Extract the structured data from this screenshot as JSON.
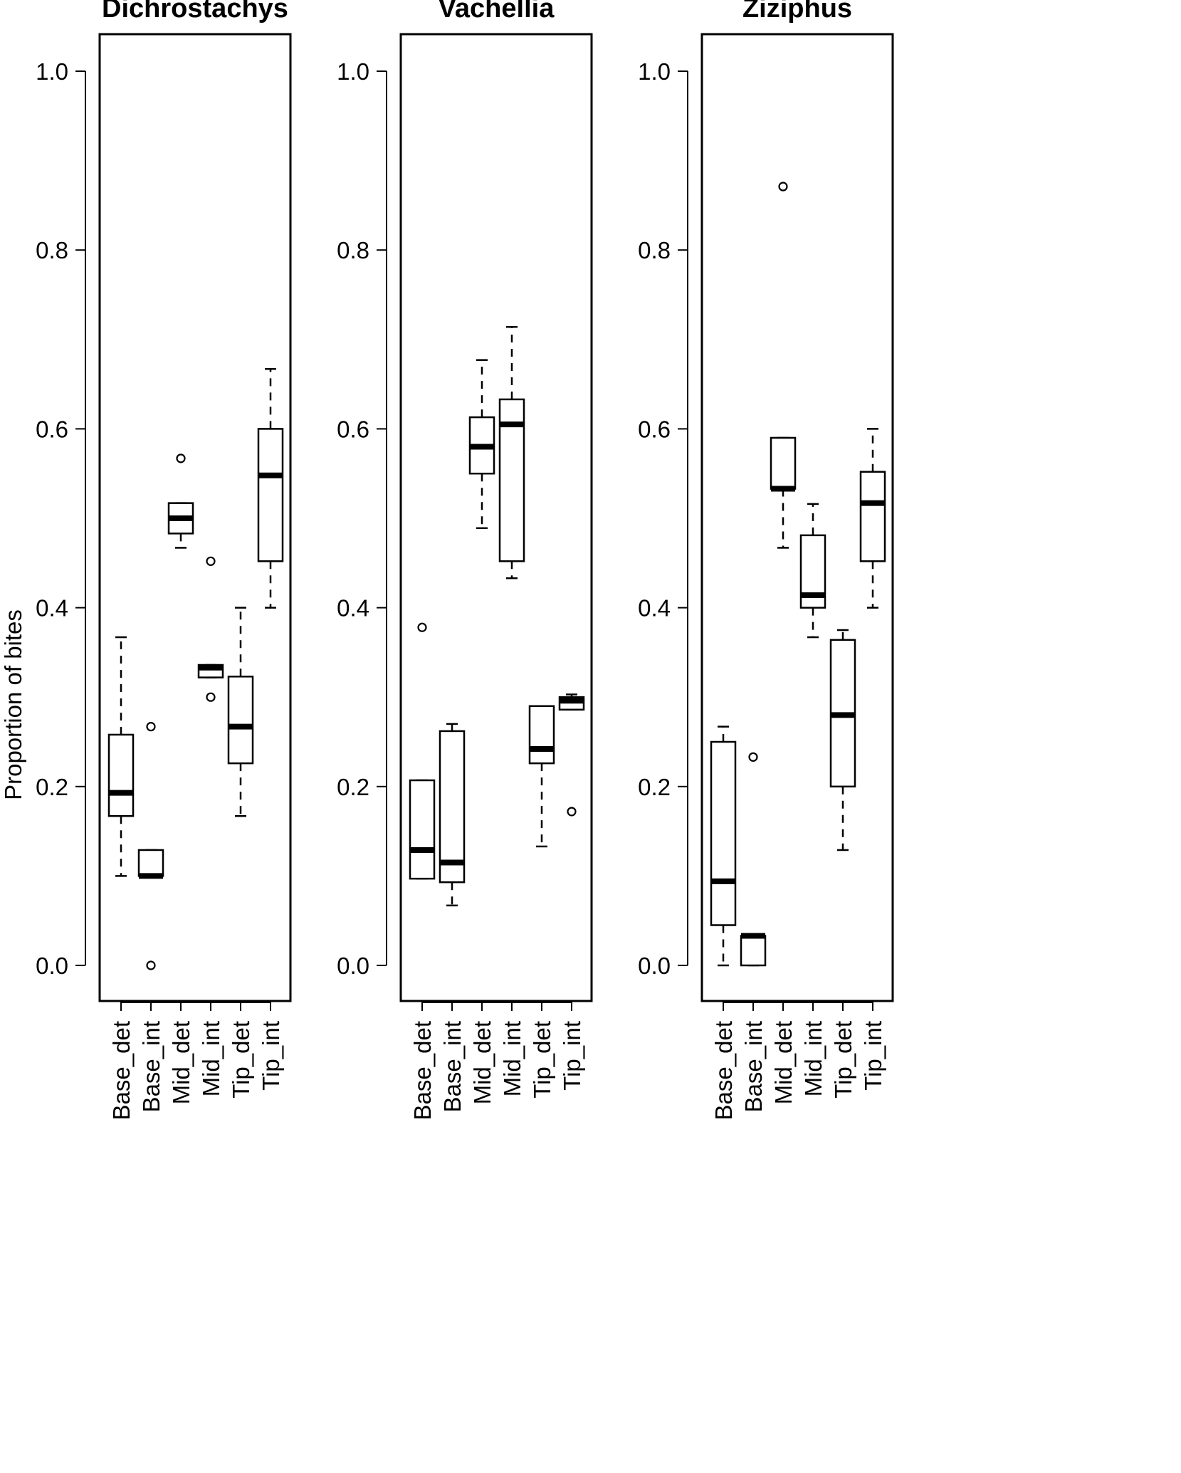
{
  "chart_data": {
    "type": "boxplot",
    "ylabel": "Proportion of bites",
    "ylim": [
      -0.04,
      1.04
    ],
    "yticks": [
      "0.0",
      "0.2",
      "0.4",
      "0.6",
      "0.8",
      "1.0"
    ],
    "categories": [
      "Base_det",
      "Base_int",
      "Mid_det",
      "Mid_int",
      "Tip_det",
      "Tip_int"
    ],
    "panels": [
      {
        "title": "Dichrostachys",
        "boxes": [
          {
            "category": "Base_det",
            "whisker_low": 0.1,
            "q1": 0.167,
            "median": 0.193,
            "q3": 0.258,
            "whisker_high": 0.367,
            "outliers": []
          },
          {
            "category": "Base_int",
            "whisker_low": 0.1,
            "q1": 0.1,
            "median": 0.1,
            "q3": 0.129,
            "whisker_high": 0.129,
            "outliers": [
              0.267,
              0.0
            ]
          },
          {
            "category": "Mid_det",
            "whisker_low": 0.467,
            "q1": 0.483,
            "median": 0.5,
            "q3": 0.517,
            "whisker_high": 0.517,
            "outliers": [
              0.567
            ]
          },
          {
            "category": "Mid_int",
            "whisker_low": 0.322,
            "q1": 0.322,
            "median": 0.333,
            "q3": 0.336,
            "whisker_high": 0.336,
            "outliers": [
              0.452,
              0.3
            ]
          },
          {
            "category": "Tip_det",
            "whisker_low": 0.167,
            "q1": 0.226,
            "median": 0.267,
            "q3": 0.323,
            "whisker_high": 0.4,
            "outliers": []
          },
          {
            "category": "Tip_int",
            "whisker_low": 0.4,
            "q1": 0.452,
            "median": 0.548,
            "q3": 0.6,
            "whisker_high": 0.667,
            "outliers": []
          }
        ]
      },
      {
        "title": "Vachellia",
        "boxes": [
          {
            "category": "Base_det",
            "whisker_low": 0.097,
            "q1": 0.097,
            "median": 0.129,
            "q3": 0.207,
            "whisker_high": 0.207,
            "outliers": [
              0.378
            ]
          },
          {
            "category": "Base_int",
            "whisker_low": 0.067,
            "q1": 0.093,
            "median": 0.115,
            "q3": 0.262,
            "whisker_high": 0.27,
            "outliers": []
          },
          {
            "category": "Mid_det",
            "whisker_low": 0.489,
            "q1": 0.55,
            "median": 0.58,
            "q3": 0.613,
            "whisker_high": 0.677,
            "outliers": []
          },
          {
            "category": "Mid_int",
            "whisker_low": 0.433,
            "q1": 0.452,
            "median": 0.605,
            "q3": 0.633,
            "whisker_high": 0.714,
            "outliers": []
          },
          {
            "category": "Tip_det",
            "whisker_low": 0.133,
            "q1": 0.226,
            "median": 0.242,
            "q3": 0.29,
            "whisker_high": 0.29,
            "outliers": []
          },
          {
            "category": "Tip_int",
            "whisker_low": 0.286,
            "q1": 0.286,
            "median": 0.296,
            "q3": 0.3,
            "whisker_high": 0.303,
            "outliers": [
              0.172
            ]
          }
        ]
      },
      {
        "title": "Ziziphus",
        "boxes": [
          {
            "category": "Base_det",
            "whisker_low": 0.0,
            "q1": 0.045,
            "median": 0.094,
            "q3": 0.25,
            "whisker_high": 0.267,
            "outliers": []
          },
          {
            "category": "Base_int",
            "whisker_low": 0.0,
            "q1": 0.0,
            "median": 0.033,
            "q3": 0.033,
            "whisker_high": 0.033,
            "outliers": [
              0.233
            ]
          },
          {
            "category": "Mid_det",
            "whisker_low": 0.467,
            "q1": 0.533,
            "median": 0.533,
            "q3": 0.59,
            "whisker_high": 0.59,
            "outliers": [
              0.871
            ]
          },
          {
            "category": "Mid_int",
            "whisker_low": 0.367,
            "q1": 0.4,
            "median": 0.414,
            "q3": 0.481,
            "whisker_high": 0.516,
            "outliers": []
          },
          {
            "category": "Tip_det",
            "whisker_low": 0.129,
            "q1": 0.2,
            "median": 0.28,
            "q3": 0.364,
            "whisker_high": 0.375,
            "outliers": []
          },
          {
            "category": "Tip_int",
            "whisker_low": 0.4,
            "q1": 0.452,
            "median": 0.517,
            "q3": 0.552,
            "whisker_high": 0.6,
            "outliers": []
          }
        ]
      }
    ]
  }
}
